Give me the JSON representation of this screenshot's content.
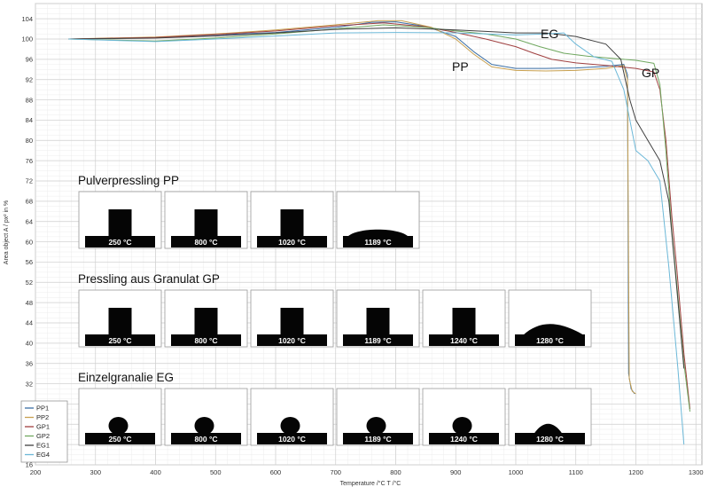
{
  "chart_data": {
    "type": "line",
    "xlabel": "Temperature /°C T /°C",
    "ylabel": "Area object A / px² in %",
    "xlim": [
      200,
      1310
    ],
    "ylim": [
      16,
      107
    ],
    "x_ticks": [
      200,
      300,
      400,
      500,
      600,
      700,
      800,
      900,
      1000,
      1100,
      1200,
      1300
    ],
    "y_ticks": [
      16,
      20,
      24,
      28,
      32,
      36,
      40,
      44,
      48,
      52,
      56,
      60,
      64,
      68,
      72,
      76,
      80,
      84,
      88,
      92,
      96,
      100,
      104
    ],
    "grid": true,
    "legend_position": "bottom-left",
    "series": [
      {
        "name": "PP1",
        "color": "#3a6ea5",
        "x": [
          255,
          400,
          500,
          600,
          700,
          760,
          800,
          850,
          900,
          930,
          960,
          1000,
          1050,
          1100,
          1150,
          1180,
          1186,
          1188,
          1192,
          1198
        ],
        "y": [
          100,
          100.3,
          100.8,
          101.3,
          102.3,
          103.3,
          103.4,
          102.5,
          100.5,
          97.5,
          95,
          94.2,
          94.2,
          94.3,
          94.6,
          95,
          93,
          34,
          31,
          30
        ]
      },
      {
        "name": "PP2",
        "color": "#c8a050",
        "x": [
          255,
          400,
          500,
          600,
          700,
          770,
          810,
          860,
          900,
          930,
          960,
          1000,
          1050,
          1100,
          1150,
          1180,
          1186,
          1189,
          1194,
          1200
        ],
        "y": [
          100,
          100.4,
          101,
          101.8,
          102.8,
          103.6,
          103.6,
          102.3,
          100,
          97,
          94.5,
          93.8,
          93.7,
          93.8,
          94.2,
          94.8,
          92,
          33,
          30.5,
          30
        ]
      },
      {
        "name": "GP1",
        "color": "#a04040",
        "x": [
          255,
          400,
          500,
          600,
          700,
          780,
          850,
          900,
          950,
          1000,
          1030,
          1060,
          1100,
          1150,
          1200,
          1230,
          1240,
          1250,
          1260,
          1268,
          1280,
          1290
        ],
        "y": [
          100,
          100.3,
          100.9,
          101.6,
          102.6,
          103.2,
          102.4,
          101.3,
          100,
          98.5,
          97.2,
          96,
          95.3,
          94.8,
          94.2,
          93.5,
          90,
          80,
          65,
          55,
          38,
          27
        ]
      },
      {
        "name": "GP2",
        "color": "#70a860",
        "x": [
          255,
          400,
          500,
          600,
          700,
          780,
          850,
          900,
          950,
          1000,
          1040,
          1080,
          1120,
          1160,
          1200,
          1230,
          1240,
          1250,
          1260,
          1268,
          1280,
          1290
        ],
        "y": [
          100,
          99.6,
          100.2,
          101,
          102,
          102.8,
          102.3,
          101.6,
          101,
          100,
          98.5,
          97.2,
          96.6,
          96.2,
          95.8,
          95.2,
          91,
          78,
          62,
          52,
          36,
          26.5
        ]
      },
      {
        "name": "EG1",
        "color": "#404040",
        "x": [
          255,
          400,
          500,
          600,
          700,
          800,
          900,
          950,
          1000,
          1050,
          1100,
          1150,
          1175,
          1190,
          1200,
          1220,
          1240,
          1255,
          1265,
          1280
        ],
        "y": [
          100,
          100.2,
          100.6,
          101.2,
          101.9,
          102.2,
          101.8,
          101.5,
          101.2,
          101.2,
          100.5,
          99,
          96,
          88,
          84,
          80,
          76,
          68,
          55,
          35
        ]
      },
      {
        "name": "EG4",
        "color": "#6cb8d8",
        "x": [
          255,
          400,
          500,
          600,
          700,
          800,
          900,
          950,
          1000,
          1050,
          1080,
          1100,
          1130,
          1160,
          1180,
          1200,
          1220,
          1240,
          1255,
          1270,
          1280
        ],
        "y": [
          100,
          99.5,
          100,
          100.6,
          101.2,
          101.3,
          101.2,
          101,
          100.8,
          101,
          101.2,
          99,
          96.5,
          95.6,
          90,
          78,
          76,
          72,
          55,
          35,
          20
        ]
      }
    ],
    "annotations": [
      "EG",
      "PP",
      "GP"
    ]
  },
  "image_groups": [
    {
      "title": "Pulverpressling PP",
      "frames": [
        {
          "label": "250 °C",
          "shape": "block"
        },
        {
          "label": "800 °C",
          "shape": "block"
        },
        {
          "label": "1020 °C",
          "shape": "block"
        },
        {
          "label": "1189 °C",
          "shape": "dome"
        }
      ]
    },
    {
      "title": "Pressling aus Granulat GP",
      "frames": [
        {
          "label": "250 °C",
          "shape": "block"
        },
        {
          "label": "800 °C",
          "shape": "block"
        },
        {
          "label": "1020 °C",
          "shape": "block"
        },
        {
          "label": "1189 °C",
          "shape": "block"
        },
        {
          "label": "1240 °C",
          "shape": "block"
        },
        {
          "label": "1280 °C",
          "shape": "hill"
        }
      ]
    },
    {
      "title": "Einzelgranalie EG",
      "frames": [
        {
          "label": "250 °C",
          "shape": "ball"
        },
        {
          "label": "800 °C",
          "shape": "ball"
        },
        {
          "label": "1020 °C",
          "shape": "ball"
        },
        {
          "label": "1189 °C",
          "shape": "ball"
        },
        {
          "label": "1240 °C",
          "shape": "ball"
        },
        {
          "label": "1280 °C",
          "shape": "smallhill"
        }
      ]
    }
  ]
}
